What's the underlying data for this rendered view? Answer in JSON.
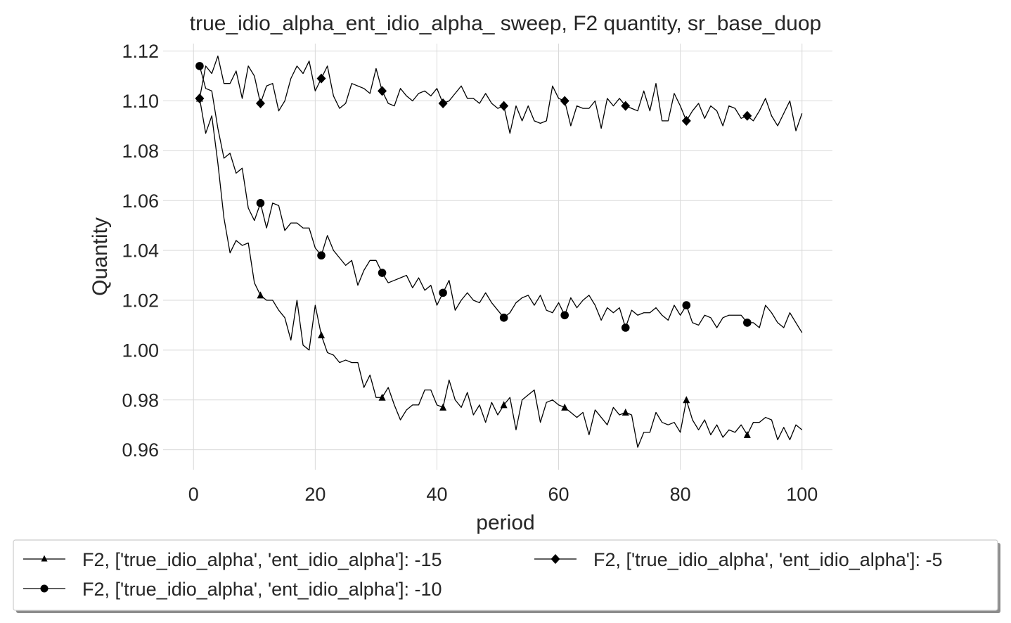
{
  "chart_data": {
    "type": "line",
    "title": "true_idio_alpha_ent_idio_alpha_ sweep, F2 quantity, sr_base_duop",
    "xlabel": "period",
    "ylabel": "Quantity",
    "xlim": [
      -5,
      105
    ],
    "ylim": [
      0.952,
      1.123
    ],
    "xticks": [
      0,
      20,
      40,
      60,
      80,
      100
    ],
    "yticks": [
      0.96,
      0.98,
      1.0,
      1.02,
      1.04,
      1.06,
      1.08,
      1.1,
      1.12
    ],
    "xtick_labels": [
      "0",
      "20",
      "40",
      "60",
      "80",
      "100"
    ],
    "ytick_labels": [
      "0.96",
      "0.98",
      "1.00",
      "1.02",
      "1.04",
      "1.06",
      "1.08",
      "1.10",
      "1.12"
    ],
    "grid": true,
    "legend_position": "below",
    "x": [
      1,
      2,
      3,
      4,
      5,
      6,
      7,
      8,
      9,
      10,
      11,
      12,
      13,
      14,
      15,
      16,
      17,
      18,
      19,
      20,
      21,
      22,
      23,
      24,
      25,
      26,
      27,
      28,
      29,
      30,
      31,
      32,
      33,
      34,
      35,
      36,
      37,
      38,
      39,
      40,
      41,
      42,
      43,
      44,
      45,
      46,
      47,
      48,
      49,
      50,
      51,
      52,
      53,
      54,
      55,
      56,
      57,
      58,
      59,
      60,
      61,
      62,
      63,
      64,
      65,
      66,
      67,
      68,
      69,
      70,
      71,
      72,
      73,
      74,
      75,
      76,
      77,
      78,
      79,
      80,
      81,
      82,
      83,
      84,
      85,
      86,
      87,
      88,
      89,
      90,
      91,
      92,
      93,
      94,
      95,
      96,
      97,
      98,
      99,
      100
    ],
    "series": [
      {
        "name": "F2, ['true_idio_alpha', 'ent_idio_alpha']: -15",
        "marker": "triangle",
        "color": "#000000",
        "values": [
          1.101,
          1.087,
          1.094,
          1.075,
          1.053,
          1.039,
          1.044,
          1.042,
          1.043,
          1.027,
          1.022,
          1.02,
          1.02,
          1.016,
          1.013,
          1.004,
          1.02,
          1.002,
          1.0,
          1.018,
          1.006,
          0.999,
          0.998,
          0.995,
          0.996,
          0.995,
          0.995,
          0.985,
          0.99,
          0.981,
          0.981,
          0.985,
          0.978,
          0.972,
          0.976,
          0.978,
          0.978,
          0.984,
          0.984,
          0.978,
          0.977,
          0.988,
          0.98,
          0.977,
          0.983,
          0.974,
          0.978,
          0.971,
          0.979,
          0.974,
          0.978,
          0.981,
          0.968,
          0.98,
          0.982,
          0.984,
          0.971,
          0.979,
          0.98,
          0.978,
          0.977,
          0.975,
          0.973,
          0.975,
          0.966,
          0.976,
          0.973,
          0.97,
          0.977,
          0.974,
          0.975,
          0.974,
          0.961,
          0.967,
          0.967,
          0.975,
          0.971,
          0.97,
          0.971,
          0.967,
          0.98,
          0.972,
          0.968,
          0.972,
          0.966,
          0.97,
          0.965,
          0.968,
          0.967,
          0.97,
          0.966,
          0.971,
          0.971,
          0.973,
          0.972,
          0.964,
          0.969,
          0.964,
          0.97,
          0.968
        ]
      },
      {
        "name": "F2, ['true_idio_alpha', 'ent_idio_alpha']: -10",
        "marker": "circle",
        "color": "#000000",
        "values": [
          1.114,
          1.105,
          1.104,
          1.089,
          1.077,
          1.079,
          1.071,
          1.073,
          1.057,
          1.052,
          1.059,
          1.049,
          1.059,
          1.058,
          1.048,
          1.051,
          1.051,
          1.049,
          1.049,
          1.041,
          1.038,
          1.046,
          1.04,
          1.037,
          1.034,
          1.036,
          1.026,
          1.032,
          1.036,
          1.036,
          1.031,
          1.027,
          1.028,
          1.029,
          1.03,
          1.025,
          1.029,
          1.024,
          1.026,
          1.018,
          1.023,
          1.028,
          1.016,
          1.02,
          1.023,
          1.02,
          1.019,
          1.023,
          1.019,
          1.016,
          1.013,
          1.015,
          1.019,
          1.021,
          1.022,
          1.018,
          1.022,
          1.016,
          1.015,
          1.019,
          1.014,
          1.021,
          1.017,
          1.02,
          1.022,
          1.018,
          1.012,
          1.017,
          1.015,
          1.017,
          1.009,
          1.016,
          1.014,
          1.015,
          1.015,
          1.017,
          1.014,
          1.012,
          1.018,
          1.014,
          1.018,
          1.011,
          1.01,
          1.014,
          1.013,
          1.009,
          1.013,
          1.014,
          1.014,
          1.014,
          1.011,
          1.011,
          1.009,
          1.018,
          1.015,
          1.011,
          1.009,
          1.015,
          1.011,
          1.007
        ]
      },
      {
        "name": "F2, ['true_idio_alpha', 'ent_idio_alpha']: -5",
        "marker": "diamond",
        "color": "#000000",
        "values": [
          1.101,
          1.114,
          1.111,
          1.118,
          1.107,
          1.107,
          1.112,
          1.101,
          1.114,
          1.11,
          1.099,
          1.106,
          1.107,
          1.096,
          1.1,
          1.109,
          1.114,
          1.111,
          1.116,
          1.104,
          1.109,
          1.114,
          1.102,
          1.097,
          1.099,
          1.107,
          1.106,
          1.105,
          1.103,
          1.113,
          1.104,
          1.099,
          1.098,
          1.105,
          1.102,
          1.1,
          1.103,
          1.104,
          1.102,
          1.105,
          1.099,
          1.1,
          1.103,
          1.106,
          1.101,
          1.101,
          1.099,
          1.103,
          1.099,
          1.097,
          1.098,
          1.087,
          1.098,
          1.092,
          1.098,
          1.092,
          1.091,
          1.092,
          1.106,
          1.101,
          1.1,
          1.09,
          1.098,
          1.097,
          1.097,
          1.1,
          1.089,
          1.101,
          1.098,
          1.101,
          1.098,
          1.097,
          1.096,
          1.104,
          1.096,
          1.107,
          1.092,
          1.092,
          1.103,
          1.098,
          1.092,
          1.096,
          1.099,
          1.093,
          1.098,
          1.096,
          1.09,
          1.098,
          1.097,
          1.093,
          1.094,
          1.092,
          1.096,
          1.101,
          1.094,
          1.09,
          1.095,
          1.1,
          1.088,
          1.095
        ]
      }
    ]
  }
}
